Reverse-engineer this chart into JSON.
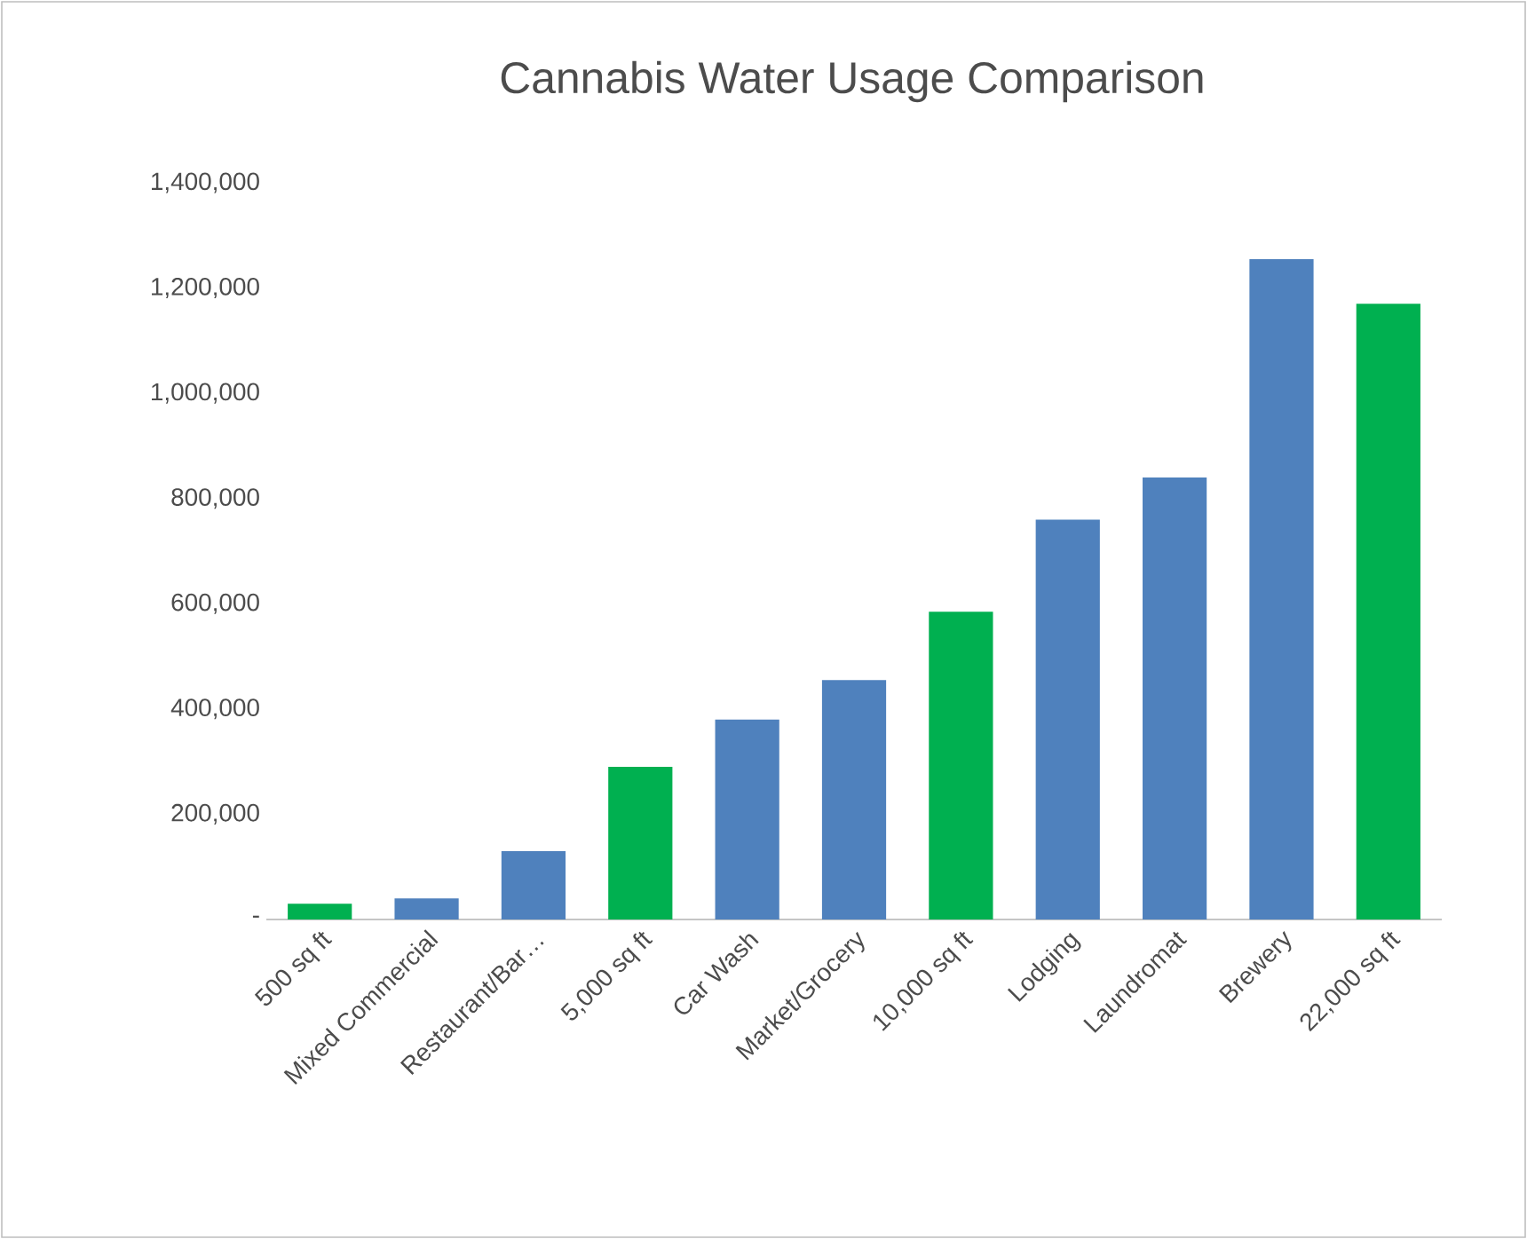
{
  "chart_data": {
    "type": "bar",
    "title": "Cannabis Water Usage Comparison",
    "categories": [
      "500 sq ft",
      "Mixed Commercial",
      "Restaurant/Bar…",
      "5,000 sq ft",
      "Car Wash",
      "Market/Grocery",
      "10,000 sq ft",
      "Lodging",
      "Laundromat",
      "Brewery",
      "22,000 sq ft"
    ],
    "values": [
      30000,
      40000,
      130000,
      290000,
      380000,
      455000,
      585000,
      760000,
      840000,
      1255000,
      1170000
    ],
    "colors": [
      "#00b050",
      "#4f81bd",
      "#4f81bd",
      "#00b050",
      "#4f81bd",
      "#4f81bd",
      "#00b050",
      "#4f81bd",
      "#4f81bd",
      "#4f81bd",
      "#00b050"
    ],
    "ylim": [
      0,
      1400000
    ],
    "yticks": [
      {
        "value": 0,
        "label": "-"
      },
      {
        "value": 200000,
        "label": "200,000"
      },
      {
        "value": 400000,
        "label": "400,000"
      },
      {
        "value": 600000,
        "label": "600,000"
      },
      {
        "value": 800000,
        "label": "800,000"
      },
      {
        "value": 1000000,
        "label": "1,000,000"
      },
      {
        "value": 1200000,
        "label": "1,200,000"
      },
      {
        "value": 1400000,
        "label": "1,400,000"
      }
    ]
  }
}
